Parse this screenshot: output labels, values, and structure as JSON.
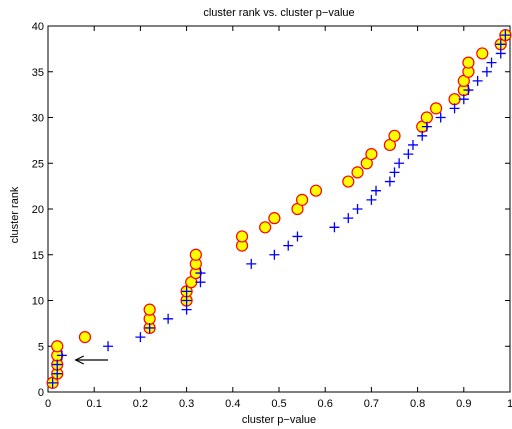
{
  "chart_data": {
    "type": "scatter",
    "title": "cluster rank vs. cluster p−value",
    "xlabel": "cluster p−value",
    "ylabel": "cluster rank",
    "xlim": [
      0,
      1
    ],
    "ylim": [
      0,
      40
    ],
    "xticks": [
      "0",
      "0.1",
      "0.2",
      "0.3",
      "0.4",
      "0.5",
      "0.6",
      "0.7",
      "0.8",
      "0.9",
      "1"
    ],
    "yticks": [
      "0",
      "5",
      "10",
      "15",
      "20",
      "25",
      "30",
      "35",
      "40"
    ],
    "grid": false,
    "colors": {
      "plus": "#0000ff",
      "circle_fill": "#ffff00",
      "circle_edge": "#ff0000",
      "arrow": "#000000"
    },
    "series": [
      {
        "marker": "plus",
        "points": [
          [
            0.01,
            1
          ],
          [
            0.02,
            2
          ],
          [
            0.02,
            3
          ],
          [
            0.03,
            4
          ],
          [
            0.13,
            5
          ],
          [
            0.2,
            6
          ],
          [
            0.22,
            7
          ],
          [
            0.26,
            8
          ],
          [
            0.3,
            9
          ],
          [
            0.3,
            10
          ],
          [
            0.3,
            11
          ],
          [
            0.33,
            12
          ],
          [
            0.33,
            13
          ],
          [
            0.44,
            14
          ],
          [
            0.49,
            15
          ],
          [
            0.52,
            16
          ],
          [
            0.54,
            17
          ],
          [
            0.62,
            18
          ],
          [
            0.65,
            19
          ],
          [
            0.67,
            20
          ],
          [
            0.7,
            21
          ],
          [
            0.71,
            22
          ],
          [
            0.74,
            23
          ],
          [
            0.75,
            24
          ],
          [
            0.76,
            25
          ],
          [
            0.78,
            26
          ],
          [
            0.79,
            27
          ],
          [
            0.81,
            28
          ],
          [
            0.82,
            29
          ],
          [
            0.85,
            30
          ],
          [
            0.88,
            31
          ],
          [
            0.9,
            32
          ],
          [
            0.91,
            33
          ],
          [
            0.93,
            34
          ],
          [
            0.95,
            35
          ],
          [
            0.96,
            36
          ],
          [
            0.98,
            37
          ],
          [
            0.98,
            38
          ],
          [
            0.99,
            39
          ]
        ]
      },
      {
        "marker": "circle",
        "points": [
          [
            0.01,
            1
          ],
          [
            0.02,
            2
          ],
          [
            0.02,
            3
          ],
          [
            0.02,
            4
          ],
          [
            0.02,
            5
          ],
          [
            0.08,
            6
          ],
          [
            0.22,
            7
          ],
          [
            0.22,
            8
          ],
          [
            0.22,
            9
          ],
          [
            0.3,
            10
          ],
          [
            0.3,
            11
          ],
          [
            0.31,
            12
          ],
          [
            0.32,
            13
          ],
          [
            0.32,
            14
          ],
          [
            0.32,
            15
          ],
          [
            0.42,
            16
          ],
          [
            0.42,
            17
          ],
          [
            0.47,
            18
          ],
          [
            0.49,
            19
          ],
          [
            0.54,
            20
          ],
          [
            0.55,
            21
          ],
          [
            0.58,
            22
          ],
          [
            0.65,
            23
          ],
          [
            0.67,
            24
          ],
          [
            0.69,
            25
          ],
          [
            0.7,
            26
          ],
          [
            0.74,
            27
          ],
          [
            0.75,
            28
          ],
          [
            0.81,
            29
          ],
          [
            0.82,
            30
          ],
          [
            0.84,
            31
          ],
          [
            0.88,
            32
          ],
          [
            0.9,
            33
          ],
          [
            0.9,
            34
          ],
          [
            0.91,
            35
          ],
          [
            0.91,
            36
          ],
          [
            0.94,
            37
          ],
          [
            0.98,
            38
          ],
          [
            0.99,
            39
          ]
        ]
      }
    ],
    "annotations": [
      {
        "type": "arrow",
        "from": [
          0.13,
          3.5
        ],
        "to": [
          0.06,
          3.5
        ]
      }
    ]
  }
}
